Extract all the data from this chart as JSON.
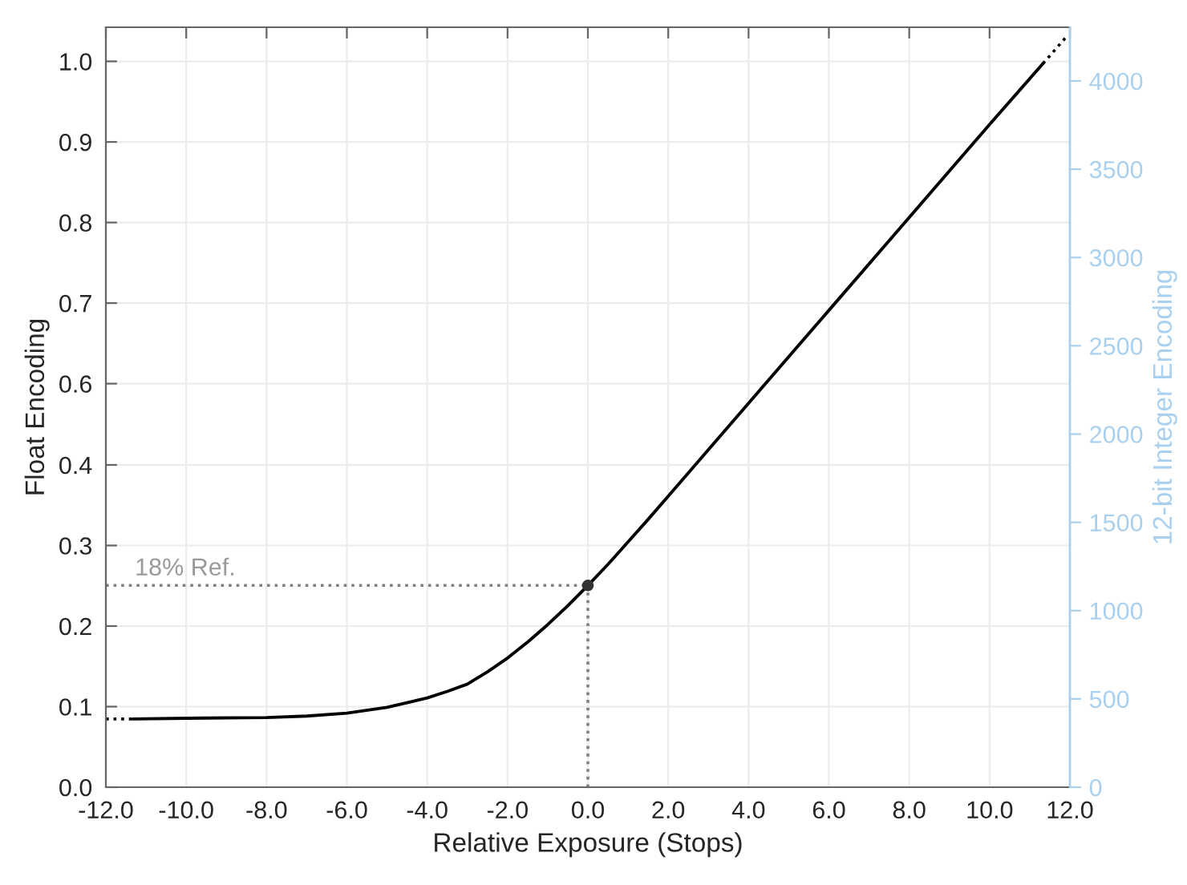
{
  "chart_data": {
    "type": "line",
    "xlabel": "Relative Exposure (Stops)",
    "ylabel": "Float Encoding",
    "y2label": "12-bit Integer Encoding",
    "xlim": [
      -12,
      12
    ],
    "ylim": [
      0,
      1.047
    ],
    "y2lim": [
      0,
      4304
    ],
    "xticks": [
      {
        "value": -12,
        "label": "-12.0"
      },
      {
        "value": -10,
        "label": "-10.0"
      },
      {
        "value": -8,
        "label": "-8.0"
      },
      {
        "value": -6,
        "label": "-6.0"
      },
      {
        "value": -4,
        "label": "-4.0"
      },
      {
        "value": -2,
        "label": "-2.0"
      },
      {
        "value": 0,
        "label": "0.0"
      },
      {
        "value": 2,
        "label": "2.0"
      },
      {
        "value": 4,
        "label": "4.0"
      },
      {
        "value": 6,
        "label": "6.0"
      },
      {
        "value": 8,
        "label": "8.0"
      },
      {
        "value": 10,
        "label": "10.0"
      },
      {
        "value": 12,
        "label": "12.0"
      }
    ],
    "yticks": [
      {
        "value": 0,
        "label": "0.0"
      },
      {
        "value": 0.111,
        "label": "0.1"
      },
      {
        "value": 0.222,
        "label": "0.2"
      },
      {
        "value": 0.333,
        "label": "0.3"
      },
      {
        "value": 0.444,
        "label": "0.4"
      },
      {
        "value": 0.556,
        "label": "0.6"
      },
      {
        "value": 0.667,
        "label": "0.7"
      },
      {
        "value": 0.778,
        "label": "0.8"
      },
      {
        "value": 0.889,
        "label": "0.9"
      },
      {
        "value": 1.0,
        "label": "1.0"
      }
    ],
    "y2ticks": [
      0,
      500,
      1000,
      1500,
      2000,
      2500,
      3000,
      3500,
      4000
    ],
    "grid": true,
    "legend": false,
    "series": [
      {
        "color": "#000000",
        "line_style": "solid",
        "x": [
          -11.33,
          -10,
          -8,
          -7,
          -6,
          -5,
          -4,
          -3.5,
          -3,
          -2.5,
          -2,
          -1.5,
          -1,
          -0.5,
          0,
          0.5,
          1,
          1.5,
          2,
          3,
          4,
          6,
          8,
          10,
          11.33
        ],
        "values": [
          0.094,
          0.095,
          0.096,
          0.098,
          0.102,
          0.11,
          0.123,
          0.132,
          0.142,
          0.159,
          0.178,
          0.2,
          0.224,
          0.25,
          0.278,
          0.307,
          0.338,
          0.369,
          0.401,
          0.465,
          0.529,
          0.657,
          0.785,
          0.913,
          0.997
        ]
      },
      {
        "color": "#000000",
        "line_style": "dotted",
        "x": [
          -12,
          -11.33
        ],
        "values": [
          0.094,
          0.094
        ]
      },
      {
        "color": "#000000",
        "line_style": "dotted",
        "x": [
          11.33,
          11.93
        ],
        "values": [
          0.997,
          1.035
        ]
      },
      {
        "color": "#808080",
        "line_style": "dotted",
        "x": [
          -12,
          0
        ],
        "values": [
          0.278,
          0.278
        ]
      },
      {
        "color": "#808080",
        "line_style": "dotted",
        "x": [
          0,
          0
        ],
        "values": [
          0,
          0.278
        ]
      },
      {
        "type": "scatter",
        "color": "#333333",
        "marker": "circle",
        "x": [
          0
        ],
        "values": [
          0.278
        ]
      }
    ],
    "annotations": [
      "18% Ref."
    ]
  }
}
